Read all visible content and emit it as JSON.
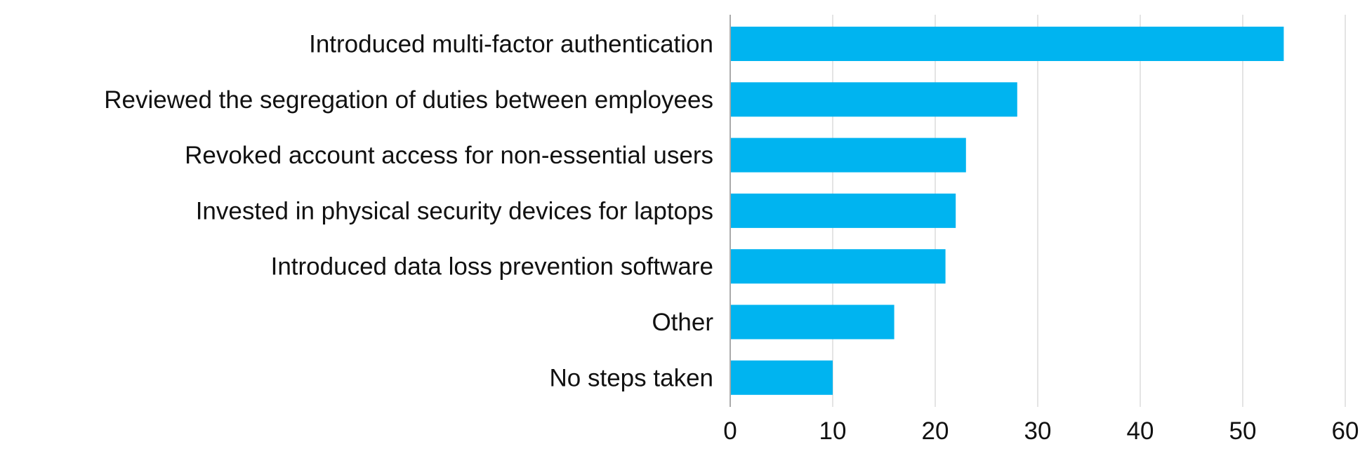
{
  "chart_data": {
    "type": "bar",
    "orientation": "horizontal",
    "categories": [
      "Introduced multi-factor authentication",
      "Reviewed the segregation of duties between employees",
      "Revoked account access for non-essential users",
      "Invested in physical security devices for laptops",
      "Introduced data loss prevention software",
      "Other",
      "No steps taken"
    ],
    "values": [
      54,
      28,
      23,
      22,
      21,
      16,
      10
    ],
    "xlim": [
      0,
      60
    ],
    "xticks": [
      0,
      10,
      20,
      30,
      40,
      50,
      60
    ],
    "grid": true,
    "bar_color": "#00b4f0",
    "title": "",
    "xlabel": "",
    "ylabel": ""
  }
}
